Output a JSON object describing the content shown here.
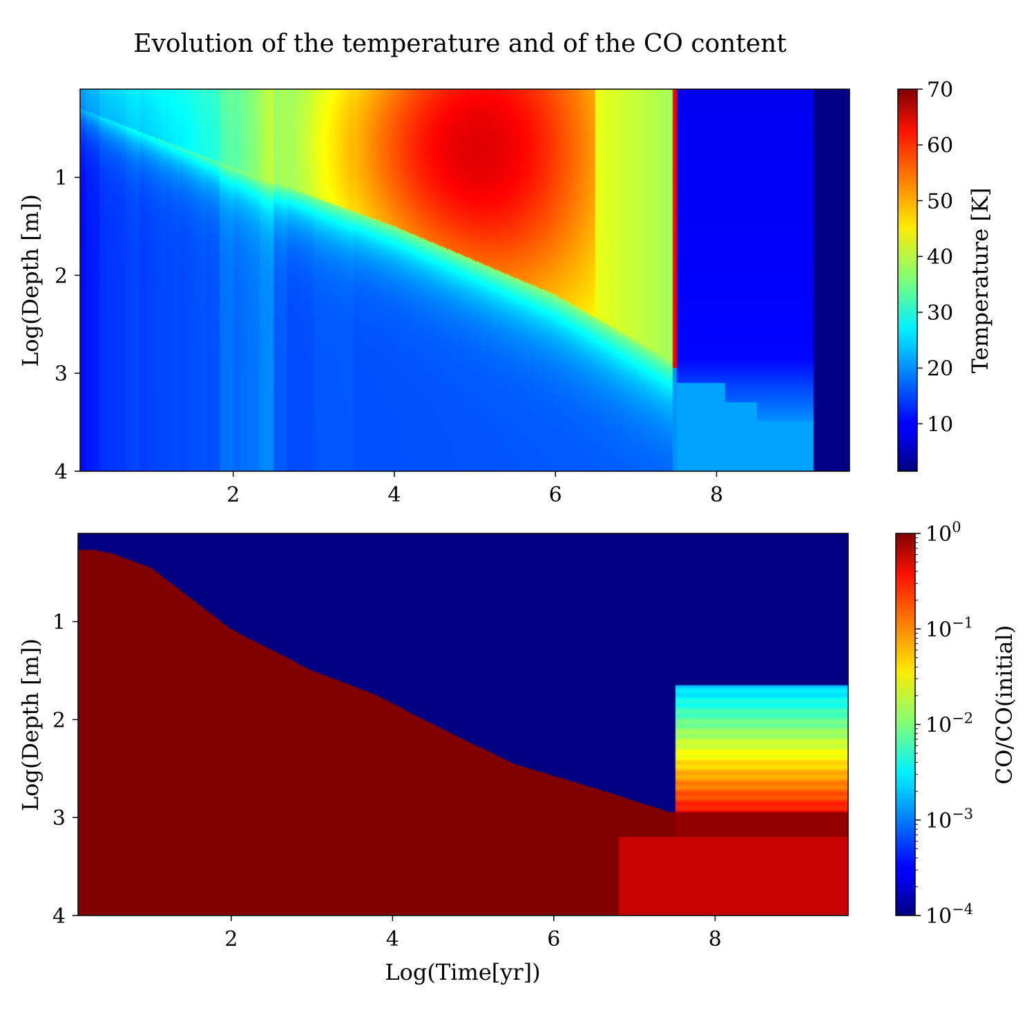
{
  "figure": {
    "title": "Evolution of the temperature and of the CO content"
  },
  "chart_data": [
    {
      "type": "heatmap",
      "title": "Evolution of the temperature and of the CO content",
      "xlabel": "",
      "ylabel": "Log(Depth [m])",
      "xlim": [
        0.1,
        9.65
      ],
      "ylim": [
        4,
        0.1
      ],
      "x_ticks": [
        2,
        4,
        6,
        8
      ],
      "y_ticks": [
        1,
        2,
        3,
        4
      ],
      "colormap": "jet",
      "colorbar": {
        "label": "Temperature [K]",
        "scale": "linear",
        "range": [
          1.5,
          70
        ],
        "ticks": [
          10,
          20,
          30,
          40,
          50,
          60,
          70
        ]
      },
      "features": {
        "max_temperature_K": 65,
        "max_at_log_time": 5,
        "max_at_log_depth": 0.7,
        "sharp_front_log_time": 7.45,
        "heated_front_depth_log": [
          [
            0.1,
            0.3
          ],
          [
            2,
            0.9
          ],
          [
            4,
            1.5
          ],
          [
            6,
            2.2
          ],
          [
            7.5,
            2.9
          ]
        ],
        "cold_phase_log_time": [
          7.5,
          9.2
        ],
        "coldest_beyond_log_time": 9.2
      }
    },
    {
      "type": "heatmap",
      "xlabel": "Log(Time[yr])",
      "ylabel": "Log(Depth [m])",
      "xlim": [
        0.1,
        9.65
      ],
      "ylim": [
        4,
        0.1
      ],
      "x_ticks": [
        2,
        4,
        6,
        8
      ],
      "y_ticks": [
        1,
        2,
        3,
        4
      ],
      "colormap": "jet",
      "colorbar": {
        "label": "CO/CO(initial)",
        "scale": "log",
        "range": [
          0.0001,
          1
        ],
        "ticks": [
          "10^0",
          "10^-1",
          "10^-2",
          "10^-3",
          "10^-4"
        ]
      },
      "features": {
        "depletion_front": [
          [
            0.3,
            0.27
          ],
          [
            0.5,
            0.3
          ],
          [
            1,
            0.45
          ],
          [
            2,
            1.08
          ],
          [
            3,
            1.5
          ],
          [
            3.8,
            1.75
          ],
          [
            4.5,
            2.05
          ],
          [
            5.5,
            2.45
          ],
          [
            6.7,
            2.75
          ],
          [
            7.45,
            2.95
          ]
        ],
        "partial_recovery_log_time": [
          7.5,
          9.65
        ],
        "partial_recovery_log_depth": [
          1.65,
          2.95
        ]
      }
    }
  ]
}
